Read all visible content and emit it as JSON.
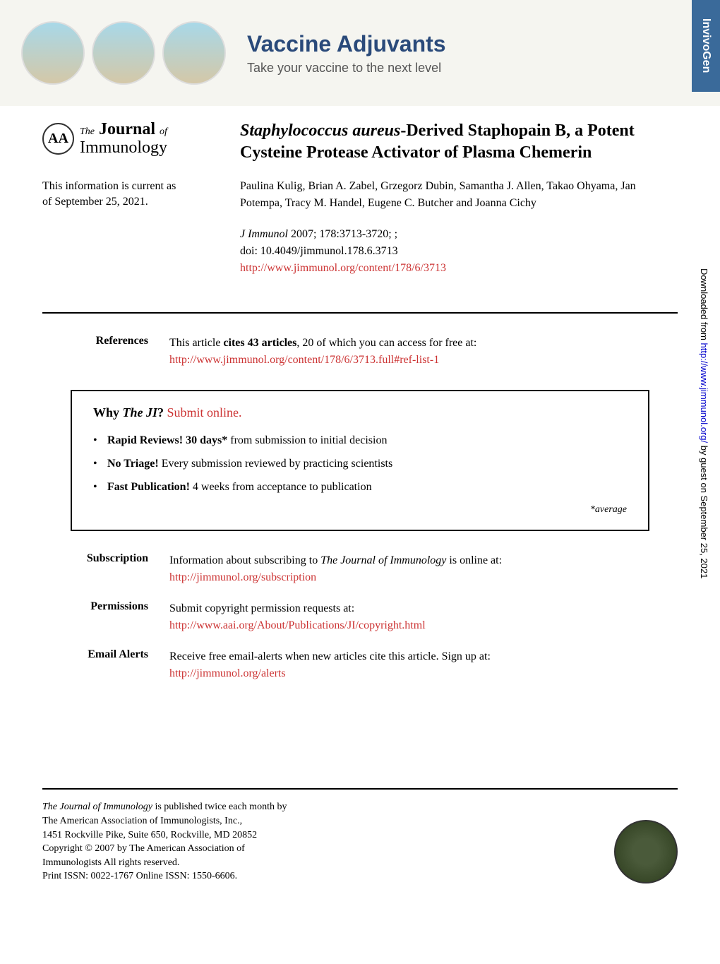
{
  "banner": {
    "title": "Vaccine Adjuvants",
    "subtitle": "Take your vaccine to the next level",
    "tag": "InvivoGen"
  },
  "journal": {
    "logo_text": "AA",
    "name_the": "The",
    "name_journal": "Journal",
    "name_of": "of",
    "name_immunology": "Immunology"
  },
  "current_info": {
    "line1": "This information is current as",
    "line2": "of September 25, 2021."
  },
  "article": {
    "title_species": "Staphylococcus aureus",
    "title_rest": "-Derived Staphopain B, a Potent Cysteine Protease Activator of Plasma Chemerin",
    "authors": "Paulina Kulig, Brian A. Zabel, Grzegorz Dubin, Samantha J. Allen, Takao Ohyama, Jan Potempa, Tracy M. Handel, Eugene C. Butcher and Joanna Cichy",
    "citation_journal": "J Immunol",
    "citation_rest": " 2007; 178:3713-3720; ;",
    "doi": "doi: 10.4049/jimmunol.178.6.3713",
    "url": "http://www.jimmunol.org/content/178/6/3713"
  },
  "references": {
    "label": "References",
    "text_start": "This article ",
    "text_bold": "cites 43 articles",
    "text_end": ", 20 of which you can access for free at:",
    "url": "http://www.jimmunol.org/content/178/6/3713.full#ref-list-1"
  },
  "why_box": {
    "title_start": "Why ",
    "title_ji": "The JI",
    "title_end": "? ",
    "title_link": "Submit online.",
    "items": [
      {
        "bold": "Rapid Reviews! 30 days*",
        "rest": " from submission to initial decision"
      },
      {
        "bold": "No Triage!",
        "rest": " Every submission reviewed by practicing scientists"
      },
      {
        "bold": "Fast Publication!",
        "rest": " 4 weeks from acceptance to publication"
      }
    ],
    "average": "*average"
  },
  "info_rows": {
    "subscription": {
      "label": "Subscription",
      "text_start": "Information about subscribing to ",
      "text_ital": "The Journal of Immunology",
      "text_end": " is online at:",
      "url": "http://jimmunol.org/subscription"
    },
    "permissions": {
      "label": "Permissions",
      "text": "Submit copyright permission requests at:",
      "url": "http://www.aai.org/About/Publications/JI/copyright.html"
    },
    "email_alerts": {
      "label": "Email Alerts",
      "text": "Receive free email-alerts when new articles cite this article. Sign up at:",
      "url": "http://jimmunol.org/alerts"
    }
  },
  "vertical": {
    "text_start": "Downloaded from ",
    "url": "http://www.jimmunol.org/",
    "text_end": " by guest on September 25, 2021"
  },
  "footer": {
    "line1_ital": "The Journal of Immunology",
    "line1_rest": " is published twice each month by",
    "line2": "The American Association of Immunologists, Inc.,",
    "line3": "1451 Rockville Pike, Suite 650, Rockville, MD 20852",
    "line4": "Copyright © 2007 by The American Association of",
    "line5": "Immunologists All rights reserved.",
    "line6": "Print ISSN: 0022-1767 Online ISSN: 1550-6606."
  }
}
